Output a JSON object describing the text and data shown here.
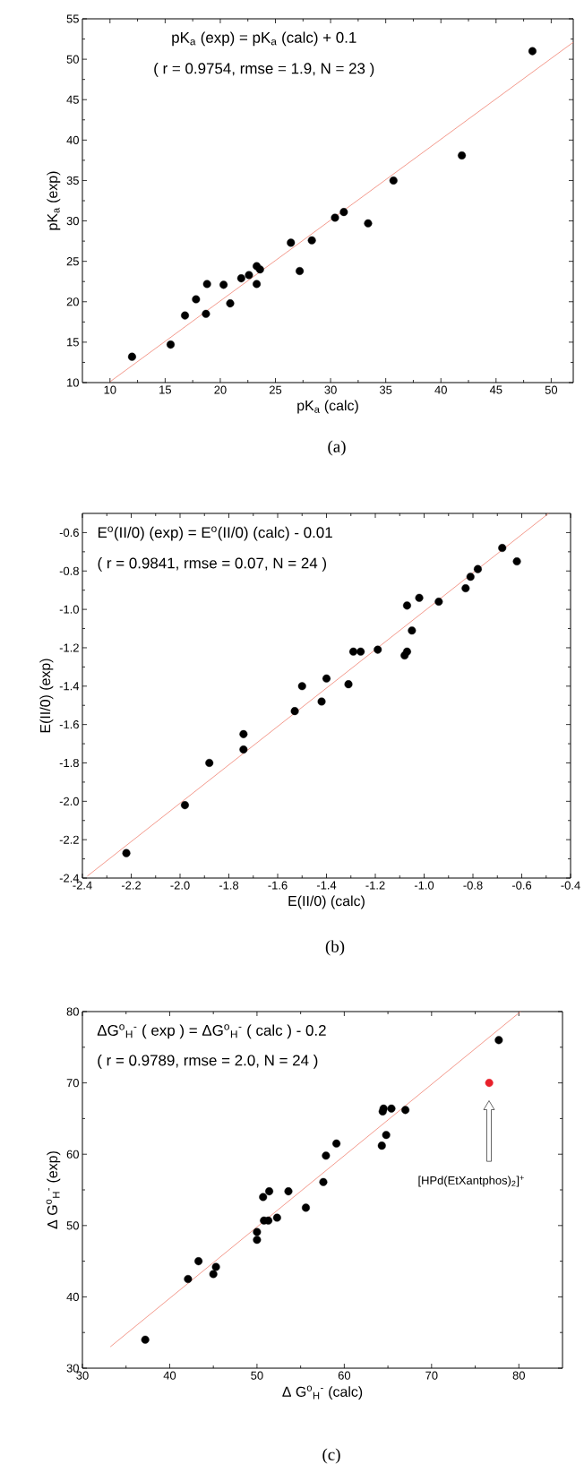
{
  "chart_data": [
    {
      "type": "scatter",
      "xlabel": "pK$_{a}$ (calc)",
      "ylabel": "pK$_{a}$ (exp)",
      "annotations": [
        "pK$_{a}$ (exp) = pK$_{a}$ (calc) + 0.1",
        "( r = 0.9754, rmse = 1.9, N = 23 )",
        "(a)"
      ],
      "xlim": [
        7.5,
        52
      ],
      "ylim": [
        10,
        55
      ],
      "xticks": [
        10,
        15,
        20,
        25,
        30,
        35,
        40,
        45,
        50
      ],
      "yticks": [
        10,
        15,
        20,
        25,
        30,
        35,
        40,
        45,
        50,
        55
      ],
      "series": [
        {
          "marker": "circle",
          "color": "#000000",
          "x": [
            12.0,
            15.5,
            16.8,
            17.8,
            18.7,
            18.8,
            20.3,
            20.9,
            21.9,
            22.6,
            23.3,
            23.3,
            23.6,
            26.4,
            27.2,
            28.3,
            30.4,
            31.2,
            33.4,
            35.7,
            41.9,
            48.3
          ],
          "values": [
            13.2,
            14.7,
            18.3,
            20.3,
            18.5,
            22.2,
            22.1,
            19.8,
            22.9,
            23.3,
            24.4,
            22.2,
            24.0,
            27.3,
            23.8,
            27.6,
            30.4,
            31.1,
            29.7,
            35.0,
            38.1,
            51.0
          ]
        },
        {
          "type": "line",
          "marker": "none",
          "color": "#f08070",
          "x": [
            10,
            52
          ],
          "values": [
            10.1,
            52.1
          ]
        }
      ]
    },
    {
      "type": "scatter",
      "xlabel": "E(II/0) (calc)",
      "ylabel": "E(II/0) (exp)",
      "annotations": [
        "E$^{o}$(II/0) (exp) = E$^{o}$(II/0) (calc) - 0.01",
        "( r = 0.9841, rmse = 0.07, N = 24 )",
        "(b)"
      ],
      "xlim": [
        -2.4,
        -0.4
      ],
      "ylim": [
        -2.4,
        -0.5
      ],
      "xticks": [
        -2.4,
        -2.2,
        {
          "value": -2.0,
          "label": "-2.0"
        },
        -1.8,
        -1.6,
        -1.4,
        -1.2,
        {
          "value": -1.0,
          "label": "-1.0"
        },
        -0.8,
        -0.6,
        -0.4
      ],
      "yticks": [
        -2.4,
        -2.2,
        {
          "value": -2.0,
          "label": "-2.0"
        },
        -1.8,
        -1.6,
        -1.4,
        -1.2,
        {
          "value": -1.0,
          "label": "-1.0"
        },
        -0.8,
        -0.6
      ],
      "series": [
        {
          "marker": "circle",
          "color": "#000000",
          "x": [
            -2.22,
            -1.98,
            -1.88,
            -1.74,
            -1.74,
            -1.53,
            -1.5,
            -1.42,
            -1.4,
            -1.31,
            -1.29,
            -1.26,
            -1.19,
            -1.08,
            -1.07,
            -1.07,
            -1.05,
            -1.02,
            -0.94,
            -0.83,
            -0.81,
            -0.78,
            -0.68,
            -0.62
          ],
          "values": [
            -2.27,
            -2.02,
            -1.8,
            -1.65,
            -1.73,
            -1.53,
            -1.4,
            -1.48,
            -1.36,
            -1.39,
            -1.22,
            -1.22,
            -1.21,
            -1.24,
            -1.22,
            -0.98,
            -1.11,
            -0.94,
            -0.96,
            -0.89,
            -0.83,
            -0.79,
            -0.68,
            -0.75
          ]
        },
        {
          "type": "line",
          "marker": "none",
          "color": "#f08070",
          "x": [
            -2.38,
            -0.49
          ],
          "values": [
            -2.39,
            -0.5
          ]
        }
      ]
    },
    {
      "type": "scatter",
      "xlabel": "Δ G$^{o}$$_{H}$$^{-}$ (calc)",
      "ylabel": "Δ G$^{o}$$_{H}$$^{-}$ (exp)",
      "annotations": [
        "ΔG$^{o}$$_{H}$$^{-}$ ( exp ) = ΔG$^{o}$$_{H}$$^{-}$ ( calc ) - 0.2",
        "( r = 0.9789, rmse = 2.0,  N = 24 )",
        "(c)",
        "[HPd(EtXantphos)$_{2}$]$^{+}$"
      ],
      "xlim": [
        30,
        85
      ],
      "ylim": [
        30,
        80
      ],
      "xticks": [
        30,
        40,
        50,
        60,
        70,
        80
      ],
      "yticks": [
        30,
        40,
        50,
        60,
        70,
        80
      ],
      "series": [
        {
          "marker": "circle",
          "color": "#000000",
          "x": [
            37.2,
            42.1,
            43.3,
            45.0,
            45.3,
            50.0,
            50.0,
            50.7,
            50.8,
            51.3,
            51.4,
            52.3,
            53.6,
            55.6,
            57.6,
            57.9,
            59.1,
            64.3,
            64.4,
            64.5,
            64.8,
            65.4,
            67.0,
            77.7
          ],
          "values": [
            34.0,
            42.5,
            45.0,
            43.2,
            44.2,
            48.0,
            49.1,
            54.0,
            50.7,
            50.7,
            54.8,
            51.1,
            54.8,
            52.5,
            56.1,
            59.8,
            61.5,
            61.2,
            66.0,
            66.4,
            62.7,
            66.4,
            66.2,
            76.0
          ]
        },
        {
          "marker": "circle",
          "color": "#e8202a",
          "x": [
            76.6
          ],
          "values": [
            70.0
          ]
        },
        {
          "type": "line",
          "marker": "none",
          "color": "#f08070",
          "x": [
            33.2,
            80.2
          ],
          "values": [
            33.0,
            80.0
          ]
        }
      ]
    }
  ]
}
